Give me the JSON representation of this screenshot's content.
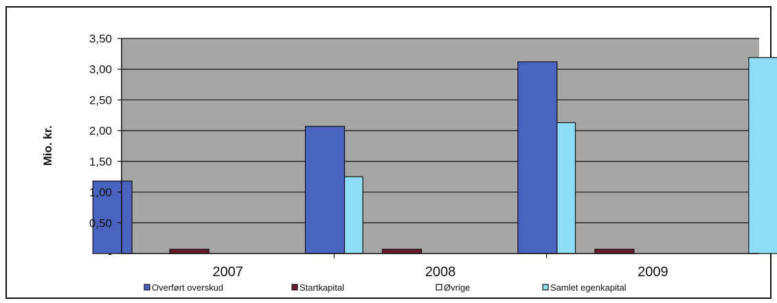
{
  "chart_data": {
    "type": "bar",
    "categories": [
      "2007",
      "2008",
      "2009"
    ],
    "series": [
      {
        "name": "Overført overskud",
        "values": [
          1.18,
          2.07,
          3.12
        ],
        "color": "#4a63c0"
      },
      {
        "name": "Startkapital",
        "values": [
          0.07,
          0.07,
          0.07
        ],
        "color": "#6b1a2e"
      },
      {
        "name": "Øvrige",
        "values": [
          0,
          0,
          0
        ],
        "color": "#ffffff"
      },
      {
        "name": "Samlet egenkapital",
        "values": [
          1.25,
          2.13,
          3.19
        ],
        "color": "#8fdcf5"
      }
    ],
    "ylabel": "Mio. kr.",
    "xlabel": "",
    "ylim": [
      0,
      3.5
    ],
    "yticks": [
      "-",
      "0,50",
      "1,00",
      "1,50",
      "2,00",
      "2,50",
      "3,00",
      "3,50"
    ],
    "grid": true,
    "plot_background": "#a6a6a6",
    "legend_position": "bottom"
  }
}
